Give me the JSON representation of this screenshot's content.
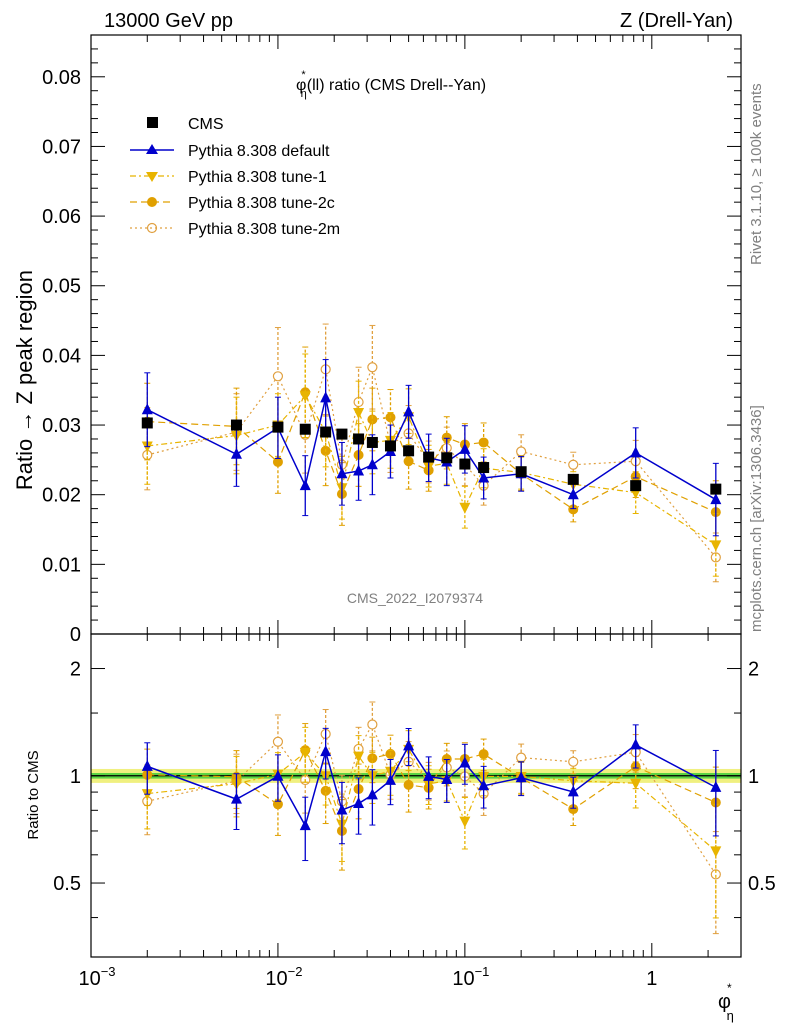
{
  "header": {
    "left": "13000 GeV pp",
    "right": "Z (Drell-Yan)",
    "side_rivet": "Rivet 3.1.10, ≥ 100k events",
    "side_mcplots": "mcplots.cern.ch [arXiv:1306.3436]",
    "watermark": "CMS_2022_I2079374"
  },
  "colors": {
    "cms": "#000000",
    "default": "#0000cc",
    "tune1": "#e8b400",
    "tune2c": "#e0a000",
    "tune2m": "#e0a040",
    "band_inner": "#33cc33",
    "band_outer": "#f0f080"
  },
  "chart_data": {
    "type": "scatter",
    "title_main": "φ",
    "title_sup": "*",
    "title_sub": "η",
    "title_rest": "(ll) ratio (CMS Drell--Yan)",
    "ylabel": "Ratio → Z peak region",
    "ratio_ylabel": "Ratio to CMS",
    "xlabel_main": "φ",
    "xlabel_sup": "*",
    "xlabel_sub": "η",
    "xscale": "log",
    "xlim": [
      0.001,
      3.0
    ],
    "ylim": [
      0,
      0.086
    ],
    "ratio_ylim": [
      0.31,
      2.5
    ],
    "ratio_yscale": "log",
    "legend_position": "top-left",
    "y_ticks": [
      {
        "v": 0.0,
        "label": "0"
      },
      {
        "v": 0.01,
        "label": "0.01"
      },
      {
        "v": 0.02,
        "label": "0.02"
      },
      {
        "v": 0.03,
        "label": "0.03"
      },
      {
        "v": 0.04,
        "label": "0.04"
      },
      {
        "v": 0.05,
        "label": "0.05"
      },
      {
        "v": 0.06,
        "label": "0.06"
      },
      {
        "v": 0.07,
        "label": "0.07"
      },
      {
        "v": 0.08,
        "label": "0.08"
      }
    ],
    "ratio_ticks": [
      {
        "v": 0.5,
        "label": "0.5"
      },
      {
        "v": 1,
        "label": "1"
      },
      {
        "v": 2,
        "label": "2"
      }
    ],
    "x_ticks": [
      {
        "v": 0.001,
        "base": "10",
        "exp": "−3"
      },
      {
        "v": 0.01,
        "base": "10",
        "exp": "−2"
      },
      {
        "v": 0.1,
        "base": "10",
        "exp": "−1"
      },
      {
        "v": 1,
        "base": "1",
        "exp": ""
      }
    ],
    "x": [
      0.002,
      0.006,
      0.01,
      0.014,
      0.018,
      0.022,
      0.027,
      0.032,
      0.04,
      0.05,
      0.064,
      0.08,
      0.1,
      0.126,
      0.2,
      0.38,
      0.82,
      2.2
    ],
    "series": [
      {
        "name": "CMS",
        "key": "cms",
        "marker": "square",
        "values": [
          0.0303,
          0.03,
          0.0297,
          0.0294,
          0.029,
          0.0287,
          0.028,
          0.0275,
          0.027,
          0.0263,
          0.0254,
          0.0253,
          0.0244,
          0.0239,
          0.0233,
          0.0222,
          0.0213,
          0.0208
        ],
        "err": [
          0.0004,
          0.0004,
          0.0004,
          0.0004,
          0.0004,
          0.0004,
          0.0004,
          0.0004,
          0.0004,
          0.0004,
          0.0004,
          0.0004,
          0.0004,
          0.0004,
          0.0004,
          0.0004,
          0.0004,
          0.0004
        ]
      },
      {
        "name": "Pythia 8.308 default",
        "key": "default",
        "marker": "triangle-up",
        "dash": "",
        "values": [
          0.0322,
          0.0258,
          0.0296,
          0.0213,
          0.0339,
          0.023,
          0.0234,
          0.0243,
          0.0262,
          0.0319,
          0.0253,
          0.0247,
          0.0265,
          0.0224,
          0.023,
          0.02,
          0.026,
          0.0193
        ],
        "err": [
          0.0053,
          0.0046,
          0.0044,
          0.0043,
          0.0055,
          0.0045,
          0.0042,
          0.0043,
          0.0038,
          0.0038,
          0.0034,
          0.0034,
          0.0034,
          0.003,
          0.0025,
          0.002,
          0.0036,
          0.0052
        ]
      },
      {
        "name": "Pythia 8.308 tune-1",
        "key": "tune1",
        "marker": "triangle-down",
        "dash": "6,3,2,3",
        "values": [
          0.027,
          0.0285,
          0.03,
          0.0342,
          0.029,
          0.021,
          0.0318,
          0.0275,
          0.0278,
          0.0312,
          0.0241,
          0.0245,
          0.0182,
          0.0238,
          0.0232,
          0.0215,
          0.0203,
          0.0128
        ],
        "err": [
          0.0055,
          0.0055,
          0.0045,
          0.006,
          0.005,
          0.0045,
          0.0045,
          0.0045,
          0.004,
          0.004,
          0.003,
          0.003,
          0.003,
          0.0028,
          0.0024,
          0.0018,
          0.003,
          0.0045
        ]
      },
      {
        "name": "Pythia 8.308 tune-2c",
        "key": "tune2c",
        "marker": "circle",
        "dash": "7,4",
        "values": [
          0.0305,
          0.0298,
          0.0247,
          0.0347,
          0.0263,
          0.0201,
          0.0257,
          0.0308,
          0.0311,
          0.0248,
          0.0235,
          0.0282,
          0.0272,
          0.0275,
          0.023,
          0.0179,
          0.0226,
          0.0175
        ],
        "err": [
          0.0055,
          0.0055,
          0.0045,
          0.0065,
          0.005,
          0.0045,
          0.0045,
          0.0045,
          0.004,
          0.004,
          0.003,
          0.003,
          0.003,
          0.0028,
          0.0024,
          0.0018,
          0.003,
          0.0045
        ]
      },
      {
        "name": "Pythia 8.308 tune-2m",
        "key": "tune2m",
        "marker": "circle-open",
        "dash": "2,3",
        "values": [
          0.0257,
          0.029,
          0.037,
          0.0286,
          0.038,
          0.0243,
          0.0333,
          0.0383,
          0.0272,
          0.0288,
          0.0247,
          0.0267,
          0.0243,
          0.0213,
          0.0262,
          0.0243,
          0.0248,
          0.011
        ],
        "err": [
          0.005,
          0.0055,
          0.007,
          0.0055,
          0.0065,
          0.0045,
          0.005,
          0.006,
          0.004,
          0.004,
          0.003,
          0.003,
          0.003,
          0.0028,
          0.0024,
          0.0018,
          0.003,
          0.0035
        ]
      }
    ]
  }
}
